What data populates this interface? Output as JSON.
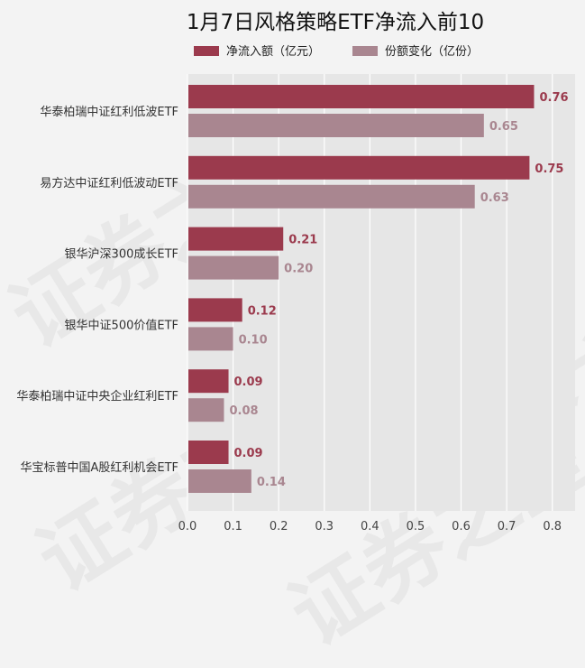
{
  "chart_data": {
    "type": "bar",
    "orientation": "horizontal",
    "title": "1月7日风格策略ETF净流入前10",
    "categories": [
      "华泰柏瑞中证红利低波ETF",
      "易方达中证红利低波动ETF",
      "银华沪深300成长ETF",
      "银华中证500价值ETF",
      "华泰柏瑞中证中央企业红利ETF",
      "华宝标普中国A股红利机会ETF"
    ],
    "series": [
      {
        "name": "净流入额（亿元）",
        "color": "#9b3a4d",
        "label_color": "#9b3a4d",
        "values": [
          0.76,
          0.75,
          0.21,
          0.12,
          0.09,
          0.09
        ],
        "data_labels": [
          "0.76",
          "0.75",
          "0.21",
          "0.12",
          "0.09",
          "0.09"
        ]
      },
      {
        "name": "份额变化（亿份）",
        "color": "#a98690",
        "label_color": "#a98690",
        "values": [
          0.65,
          0.63,
          0.2,
          0.1,
          0.08,
          0.14
        ],
        "data_labels": [
          "0.65",
          "0.63",
          "0.20",
          "0.10",
          "0.08",
          "0.14"
        ]
      }
    ],
    "xlim": [
      0,
      0.85
    ],
    "xticks": [
      0.0,
      0.1,
      0.2,
      0.3,
      0.4,
      0.5,
      0.6,
      0.7,
      0.8
    ],
    "xtick_labels": [
      "0.0",
      "0.1",
      "0.2",
      "0.3",
      "0.4",
      "0.5",
      "0.6",
      "0.7",
      "0.8"
    ],
    "grid": true,
    "legend_position": "top",
    "plot_background": "#e6e6e6",
    "watermark": "证券之星"
  }
}
